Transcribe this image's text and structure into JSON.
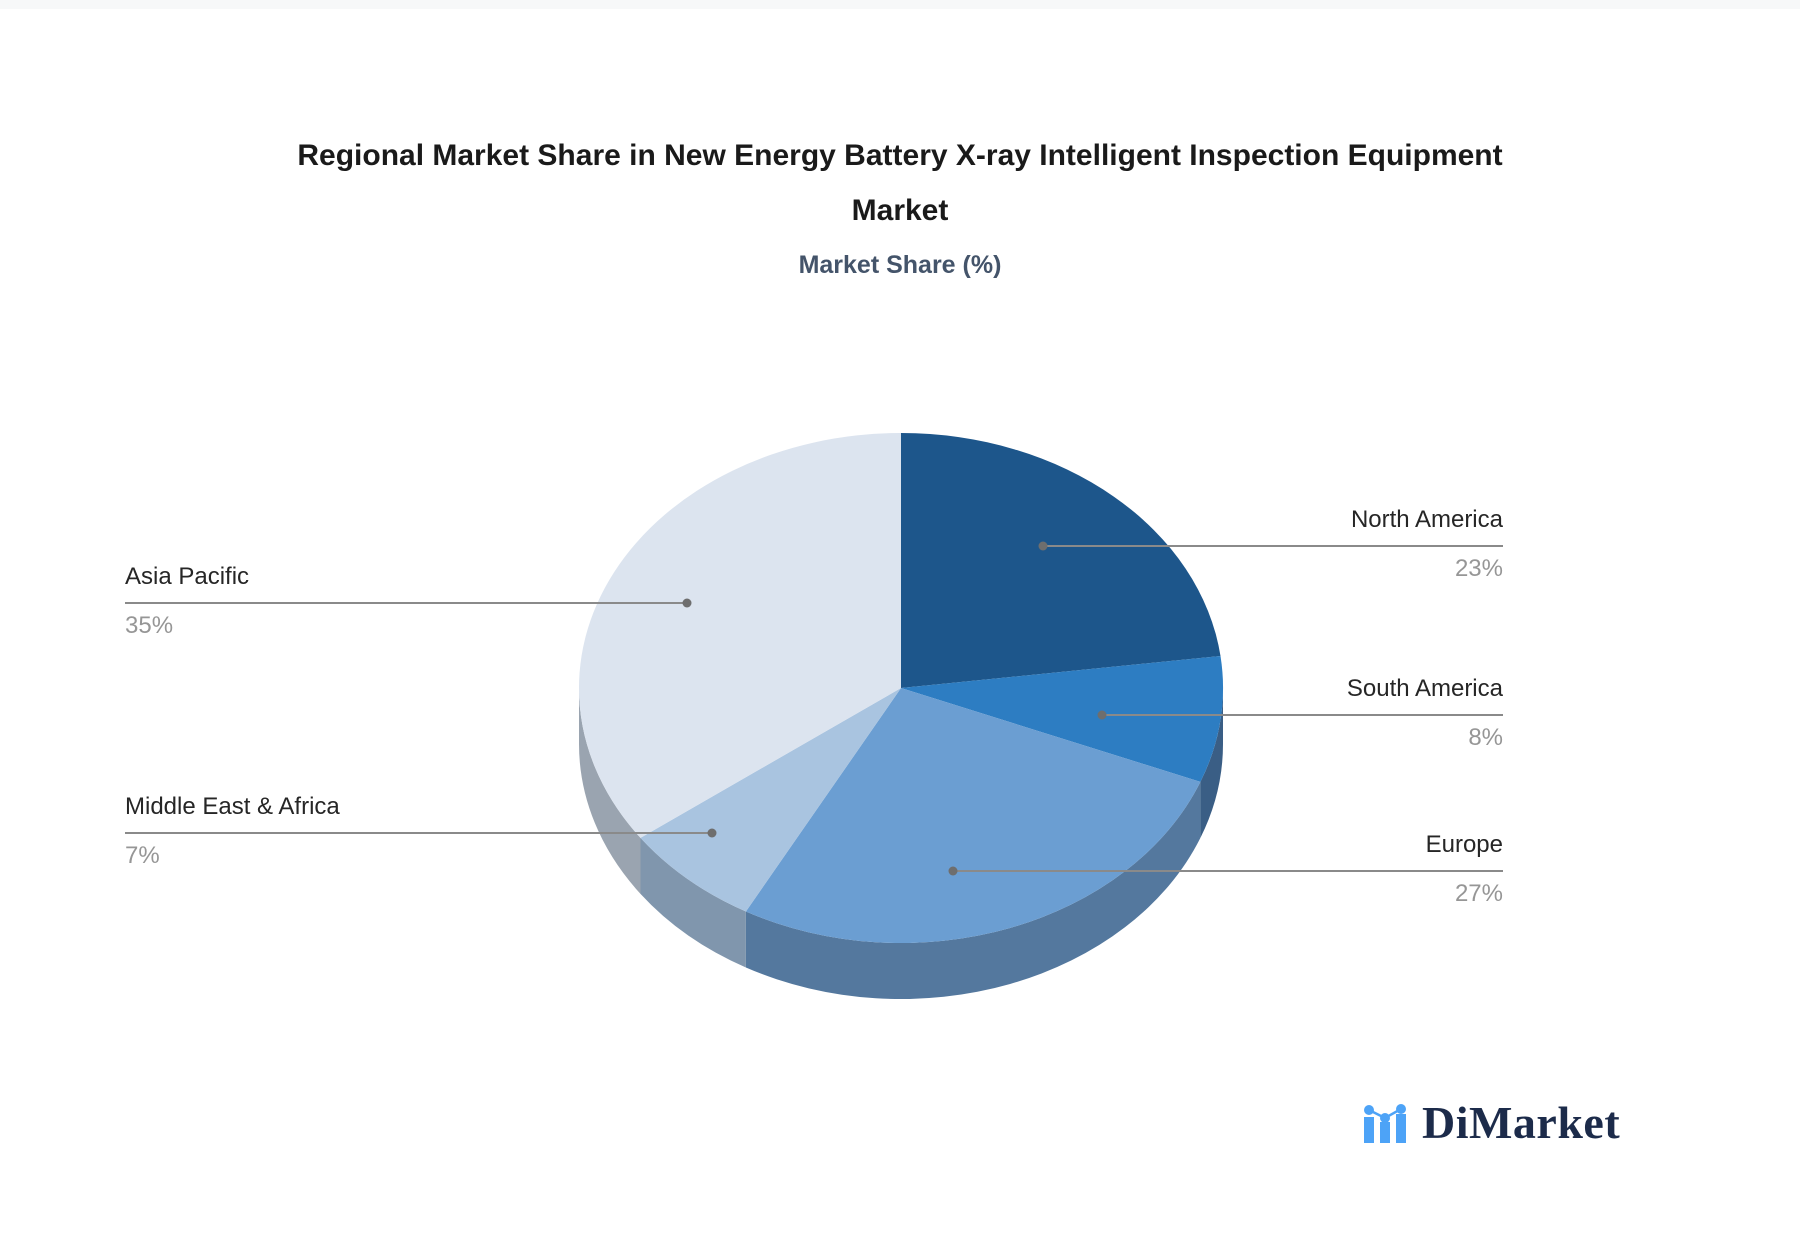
{
  "page": {
    "background_color": "#ffffff",
    "top_strip_color": "#f7f8f9"
  },
  "header": {
    "title_line1": "Regional Market Share in New Energy Battery X-ray Intelligent Inspection Equipment",
    "title_line2": "Market",
    "subtitle": "Market Share (%)"
  },
  "chart_data": {
    "type": "pie",
    "style": "3d",
    "title": "Regional Market Share in New Energy Battery X-ray Intelligent Inspection Equipment Market",
    "subtitle": "Market Share (%)",
    "unit": "%",
    "start_angle_deg": 0,
    "clockwise": true,
    "legend_position": "callout-labels",
    "slices": [
      {
        "label": "North America",
        "value": 23,
        "color": "#1d568b",
        "side_color": "#1a4a75"
      },
      {
        "label": "South America",
        "value": 8,
        "color": "#2d7dc2",
        "side_color": "#3a5e85"
      },
      {
        "label": "Europe",
        "value": 27,
        "color": "#6b9ed2",
        "side_color": "#54789e"
      },
      {
        "label": "Middle East & Africa",
        "value": 7,
        "color": "#a9c4e0",
        "side_color": "#8096ad"
      },
      {
        "label": "Asia Pacific",
        "value": 35,
        "color": "#dce4ef",
        "side_color": "#9aa4b0"
      }
    ],
    "callout_colors": {
      "line": "#8a8a8a",
      "dot": "#6e6e6e",
      "label_text": "#262626",
      "value_text": "#969696"
    }
  },
  "logo": {
    "text": "DiMarket",
    "icon": "mini-bar-chart-icon",
    "icon_color": "#4da3f7",
    "text_color": "#1c2b4a"
  }
}
